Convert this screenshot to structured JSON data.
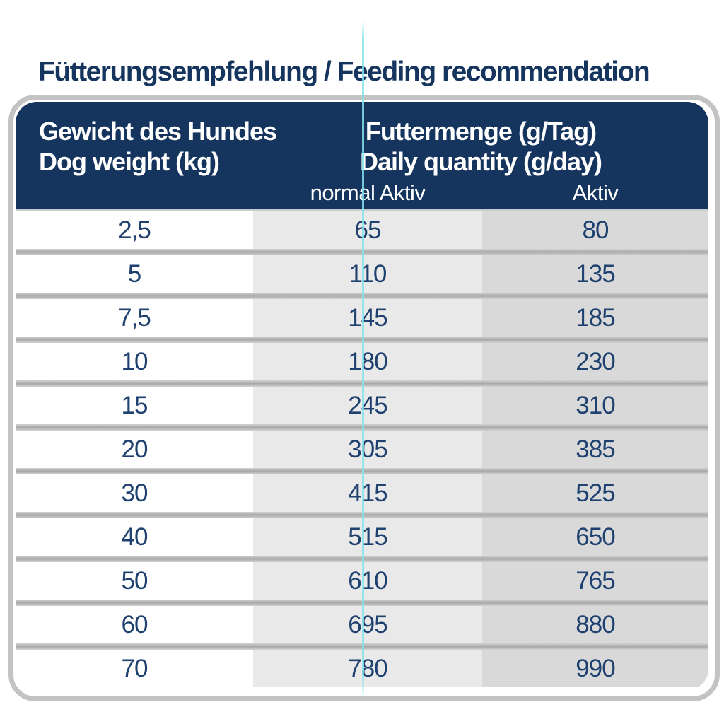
{
  "title": "Fütterungsempfehlung / Feeding recommendation",
  "table": {
    "weight_header": [
      "Gewicht des Hundes",
      "Dog weight (kg)"
    ],
    "quantity_header": [
      "Futtermenge (g/Tag)",
      "Daily quantity (g/day)"
    ],
    "col_normal_label": "normal Aktiv",
    "col_active_label": "Aktiv",
    "rows": [
      {
        "weight": "2,5",
        "normal": "65",
        "active": "80"
      },
      {
        "weight": "5",
        "normal": "110",
        "active": "135"
      },
      {
        "weight": "7,5",
        "normal": "145",
        "active": "185"
      },
      {
        "weight": "10",
        "normal": "180",
        "active": "230"
      },
      {
        "weight": "15",
        "normal": "245",
        "active": "310"
      },
      {
        "weight": "20",
        "normal": "305",
        "active": "385"
      },
      {
        "weight": "30",
        "normal": "415",
        "active": "525"
      },
      {
        "weight": "40",
        "normal": "515",
        "active": "650"
      },
      {
        "weight": "50",
        "normal": "610",
        "active": "765"
      },
      {
        "weight": "60",
        "normal": "695",
        "active": "880"
      },
      {
        "weight": "70",
        "normal": "780",
        "active": "990"
      }
    ]
  },
  "colors": {
    "header_navy": "#16355e",
    "text_navy": "#1e4170",
    "col_normal_bg": "#e9e9e9",
    "col_active_bg": "#d9d9d9",
    "separator_grey": "#a8a8a8",
    "border_grey": "#c3c3c3",
    "accent_cyan": "#85e3ec"
  },
  "chart_data": {
    "type": "table",
    "title": "Fütterungsempfehlung / Feeding recommendation",
    "columns": [
      "Gewicht des Hundes / Dog weight (kg)",
      "normal Aktiv",
      "Aktiv"
    ],
    "units": "Futtermenge (g/Tag) / Daily quantity (g/day)",
    "rows": [
      [
        2.5,
        65,
        80
      ],
      [
        5,
        110,
        135
      ],
      [
        7.5,
        145,
        185
      ],
      [
        10,
        180,
        230
      ],
      [
        15,
        245,
        310
      ],
      [
        20,
        305,
        385
      ],
      [
        30,
        415,
        525
      ],
      [
        40,
        515,
        650
      ],
      [
        50,
        610,
        765
      ],
      [
        60,
        695,
        880
      ],
      [
        70,
        780,
        990
      ]
    ]
  }
}
